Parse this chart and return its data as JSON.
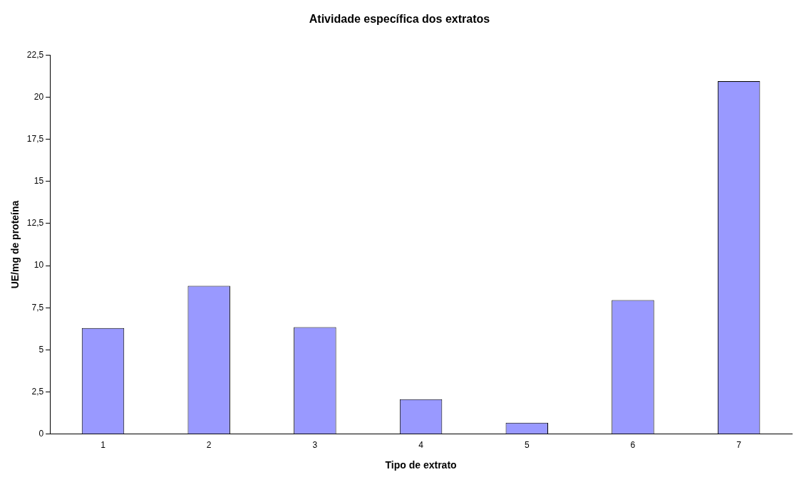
{
  "chart_data": {
    "type": "bar",
    "title": "Atividade específica dos extratos",
    "xlabel": "Tipo de extrato",
    "ylabel": "UE/mg de proteína",
    "categories": [
      "1",
      "2",
      "3",
      "4",
      "5",
      "6",
      "7"
    ],
    "values": [
      6.3,
      8.8,
      6.35,
      2.07,
      0.68,
      7.95,
      20.95
    ],
    "color": "#9999ff",
    "ylim": [
      0,
      22.5
    ],
    "yticks": [
      0,
      {
        "value": 2.5,
        "label": "2,5"
      },
      5,
      {
        "value": 7.5,
        "label": "7,5"
      },
      10,
      {
        "value": 12.5,
        "label": "12,5"
      },
      15,
      {
        "value": 17.5,
        "label": "17,5"
      },
      20,
      {
        "value": 22.5,
        "label": "22,5"
      }
    ],
    "grid": false,
    "legend": false
  }
}
